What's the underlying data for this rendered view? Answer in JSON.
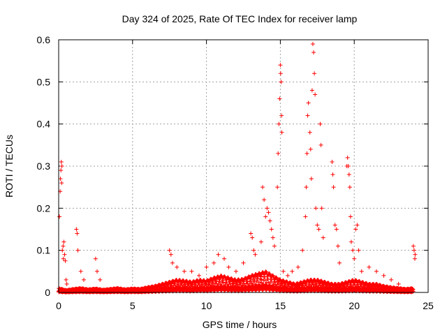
{
  "chart_data": {
    "type": "scatter",
    "title": "Day 324 of 2025, Rate Of TEC Index for receiver lamp",
    "xlabel": "GPS time / hours",
    "ylabel": "ROTI / TECUs",
    "xlim": [
      0,
      25
    ],
    "ylim": [
      0,
      0.6
    ],
    "xticks": [
      "0",
      "5",
      "10",
      "15",
      "20",
      "25"
    ],
    "yticks": [
      "0",
      "0.1",
      "0.2",
      "0.3",
      "0.4",
      "0.5",
      "0.6"
    ],
    "grid": true,
    "marker": "plus",
    "color": "#ff0000",
    "series": [
      {
        "points": [
          [
            0.05,
            0.18
          ],
          [
            0.1,
            0.24
          ],
          [
            0.12,
            0.27
          ],
          [
            0.15,
            0.29
          ],
          [
            0.18,
            0.31
          ],
          [
            0.2,
            0.26
          ],
          [
            0.22,
            0.3
          ],
          [
            0.25,
            0.1
          ],
          [
            0.3,
            0.11
          ],
          [
            0.32,
            0.08
          ],
          [
            0.35,
            0.12
          ],
          [
            0.4,
            0.09
          ],
          [
            0.45,
            0.075
          ],
          [
            0.5,
            0.03
          ],
          [
            0.55,
            0.02
          ],
          [
            1.2,
            0.15
          ],
          [
            1.25,
            0.14
          ],
          [
            1.3,
            0.1
          ],
          [
            1.5,
            0.05
          ],
          [
            1.7,
            0.03
          ],
          [
            2.5,
            0.08
          ],
          [
            2.6,
            0.05
          ],
          [
            2.8,
            0.03
          ],
          [
            7.5,
            0.1
          ],
          [
            7.6,
            0.09
          ],
          [
            7.7,
            0.07
          ],
          [
            8.0,
            0.06
          ],
          [
            8.5,
            0.05
          ],
          [
            9.0,
            0.05
          ],
          [
            9.5,
            0.04
          ],
          [
            10.0,
            0.06
          ],
          [
            10.5,
            0.07
          ],
          [
            10.8,
            0.09
          ],
          [
            11.2,
            0.08
          ],
          [
            11.5,
            0.06
          ],
          [
            12.0,
            0.05
          ],
          [
            12.5,
            0.07
          ],
          [
            13.0,
            0.14
          ],
          [
            13.1,
            0.13
          ],
          [
            13.2,
            0.1
          ],
          [
            13.3,
            0.09
          ],
          [
            13.7,
            0.12
          ],
          [
            13.8,
            0.25
          ],
          [
            13.9,
            0.22
          ],
          [
            14.0,
            0.18
          ],
          [
            14.1,
            0.2
          ],
          [
            14.2,
            0.19
          ],
          [
            14.3,
            0.17
          ],
          [
            14.4,
            0.15
          ],
          [
            14.5,
            0.13
          ],
          [
            14.6,
            0.11
          ],
          [
            14.8,
            0.25
          ],
          [
            14.85,
            0.33
          ],
          [
            14.9,
            0.4
          ],
          [
            14.95,
            0.46
          ],
          [
            15.0,
            0.54
          ],
          [
            15.02,
            0.52
          ],
          [
            15.05,
            0.5
          ],
          [
            15.08,
            0.42
          ],
          [
            15.1,
            0.38
          ],
          [
            15.2,
            0.05
          ],
          [
            15.5,
            0.04
          ],
          [
            15.8,
            0.05
          ],
          [
            16.2,
            0.06
          ],
          [
            16.5,
            0.1
          ],
          [
            16.7,
            0.18
          ],
          [
            16.75,
            0.25
          ],
          [
            16.8,
            0.33
          ],
          [
            16.85,
            0.42
          ],
          [
            16.9,
            0.45
          ],
          [
            17.0,
            0.38
          ],
          [
            17.05,
            0.34
          ],
          [
            17.1,
            0.27
          ],
          [
            17.15,
            0.48
          ],
          [
            17.2,
            0.59
          ],
          [
            17.25,
            0.57
          ],
          [
            17.3,
            0.52
          ],
          [
            17.35,
            0.47
          ],
          [
            17.4,
            0.2
          ],
          [
            17.5,
            0.16
          ],
          [
            17.6,
            0.15
          ],
          [
            17.7,
            0.4
          ],
          [
            17.75,
            0.35
          ],
          [
            17.8,
            0.2
          ],
          [
            17.9,
            0.13
          ],
          [
            18.5,
            0.31
          ],
          [
            18.55,
            0.28
          ],
          [
            18.6,
            0.25
          ],
          [
            18.7,
            0.16
          ],
          [
            18.8,
            0.15
          ],
          [
            18.9,
            0.11
          ],
          [
            19.0,
            0.07
          ],
          [
            19.5,
            0.3
          ],
          [
            19.55,
            0.32
          ],
          [
            19.6,
            0.3
          ],
          [
            19.65,
            0.28
          ],
          [
            19.7,
            0.25
          ],
          [
            19.75,
            0.18
          ],
          [
            19.8,
            0.12
          ],
          [
            19.9,
            0.1
          ],
          [
            20.0,
            0.08
          ],
          [
            20.1,
            0.15
          ],
          [
            20.2,
            0.16
          ],
          [
            20.3,
            0.1
          ],
          [
            20.5,
            0.05
          ],
          [
            21.0,
            0.06
          ],
          [
            21.5,
            0.05
          ],
          [
            22.0,
            0.04
          ],
          [
            22.5,
            0.03
          ],
          [
            23.0,
            0.02
          ],
          [
            24.0,
            0.11
          ],
          [
            24.05,
            0.1
          ],
          [
            24.1,
            0.08
          ],
          [
            24.12,
            0.09
          ]
        ],
        "baseline": [
          [
            0.0,
            0.01
          ],
          [
            0.5,
            0.005
          ],
          [
            1.0,
            0.008
          ],
          [
            1.5,
            0.01
          ],
          [
            2.0,
            0.007
          ],
          [
            2.5,
            0.009
          ],
          [
            3.0,
            0.006
          ],
          [
            3.5,
            0.008
          ],
          [
            4.0,
            0.01
          ],
          [
            4.5,
            0.007
          ],
          [
            5.0,
            0.009
          ],
          [
            5.5,
            0.008
          ],
          [
            6.0,
            0.012
          ],
          [
            6.5,
            0.015
          ],
          [
            7.0,
            0.02
          ],
          [
            7.5,
            0.025
          ],
          [
            8.0,
            0.03
          ],
          [
            8.5,
            0.028
          ],
          [
            9.0,
            0.025
          ],
          [
            9.5,
            0.03
          ],
          [
            10.0,
            0.028
          ],
          [
            10.5,
            0.035
          ],
          [
            11.0,
            0.04
          ],
          [
            11.5,
            0.035
          ],
          [
            12.0,
            0.03
          ],
          [
            12.5,
            0.032
          ],
          [
            13.0,
            0.04
          ],
          [
            13.5,
            0.045
          ],
          [
            14.0,
            0.05
          ],
          [
            14.5,
            0.04
          ],
          [
            15.0,
            0.03
          ],
          [
            15.5,
            0.025
          ],
          [
            16.0,
            0.02
          ],
          [
            16.5,
            0.025
          ],
          [
            17.0,
            0.03
          ],
          [
            17.5,
            0.03
          ],
          [
            18.0,
            0.025
          ],
          [
            18.5,
            0.02
          ],
          [
            19.0,
            0.02
          ],
          [
            19.5,
            0.025
          ],
          [
            20.0,
            0.03
          ],
          [
            20.5,
            0.025
          ],
          [
            21.0,
            0.02
          ],
          [
            21.5,
            0.02
          ],
          [
            22.0,
            0.015
          ],
          [
            22.5,
            0.012
          ],
          [
            23.0,
            0.01
          ],
          [
            23.5,
            0.008
          ],
          [
            24.0,
            0.01
          ]
        ]
      }
    ]
  }
}
